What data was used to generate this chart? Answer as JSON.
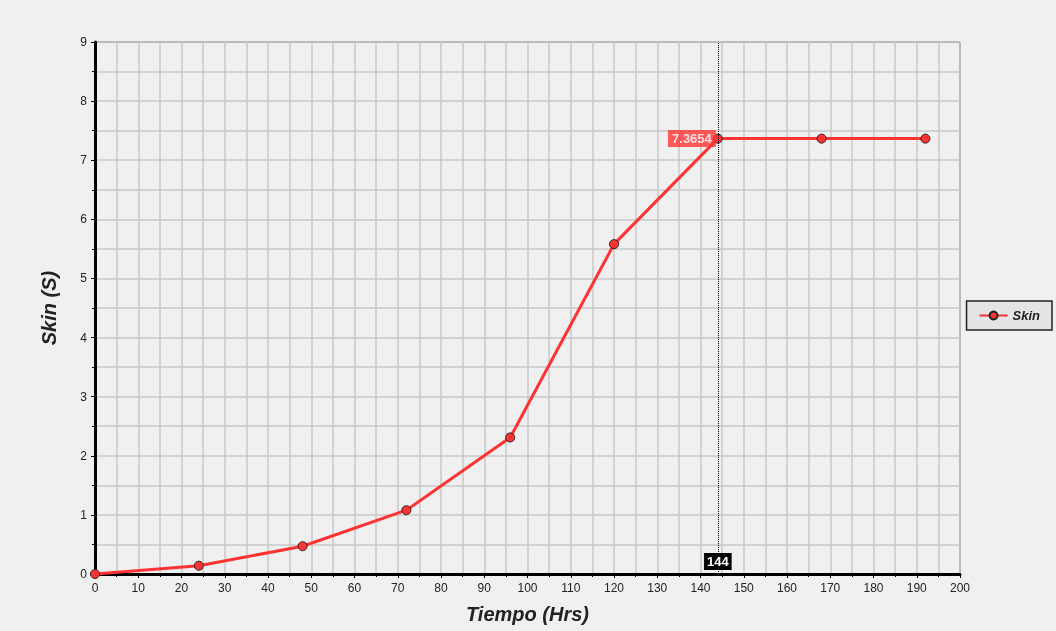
{
  "chart_data": {
    "type": "line",
    "xlabel": "Tiempo (Hrs)",
    "ylabel": "Skin (S)",
    "x": [
      0,
      24,
      48,
      72,
      96,
      120,
      144,
      168,
      192
    ],
    "series": [
      {
        "name": "Skin",
        "color": "#ff3333",
        "values": [
          0,
          0.14,
          0.47,
          1.08,
          2.31,
          5.58,
          7.3654,
          7.3654,
          7.3654
        ]
      }
    ],
    "xlim": [
      0,
      200
    ],
    "xticks": [
      0,
      10,
      20,
      30,
      40,
      50,
      60,
      70,
      80,
      90,
      100,
      110,
      120,
      130,
      140,
      150,
      160,
      170,
      180,
      190,
      200
    ],
    "ylim": [
      0,
      9
    ],
    "yticks": [
      0,
      1,
      2,
      3,
      4,
      5,
      6,
      7,
      8,
      9
    ],
    "grid": true,
    "legend": "right",
    "marker": "circle",
    "line_style": "solid",
    "ref_lines": [
      {
        "axis": "x",
        "value": 144,
        "label": "144",
        "color": "#000000",
        "line_style": "dotted"
      }
    ],
    "annotations": [
      {
        "text": "7.3654",
        "x": 144,
        "y": 7.3654
      }
    ]
  }
}
